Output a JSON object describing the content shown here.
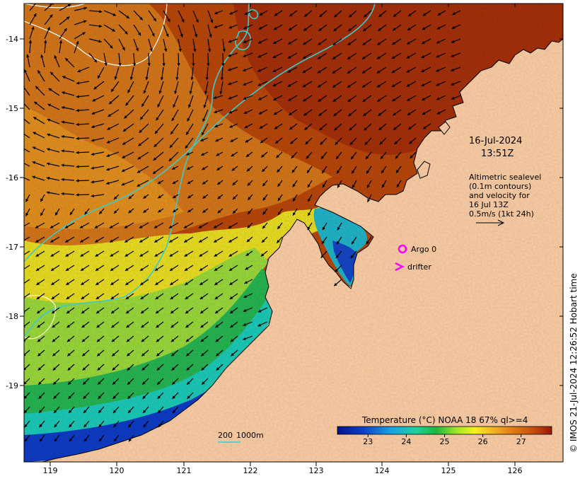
{
  "map": {
    "date": "16-Jul-2024",
    "time": "13:51Z",
    "legend_lines": [
      "Altimetric sealevel",
      "(0.1m contours)",
      "and velocity for",
      "16 Jul 13Z",
      "0.5m/s (1kt 24h)"
    ],
    "markers": {
      "argo_label": "Argo 0",
      "drifter_label": "drifter"
    },
    "scale_bar": {
      "label_200": "200",
      "label_1000": "1000m"
    },
    "credit": "© IMOS 21-Jul-2024 12:26:52 Hobart time",
    "colorbar": {
      "title": "Temperature (°C) NOAA 18 67% ql>=4",
      "range": [
        22.2,
        27.8
      ],
      "ticks": [
        "23",
        "24",
        "25",
        "26",
        "27"
      ]
    },
    "axes": {
      "x_ticks": [
        "119",
        "120",
        "121",
        "122",
        "123",
        "124",
        "125",
        "126"
      ],
      "y_ticks": [
        "-14",
        "-15",
        "-16",
        "-17",
        "-18",
        "-19"
      ]
    },
    "colors": {
      "land": "#fdcfa6",
      "warm": "#b13a06",
      "cool": "#0a1f9e",
      "isobath": "#3ec9c9",
      "marker": "#ff00ff"
    }
  }
}
